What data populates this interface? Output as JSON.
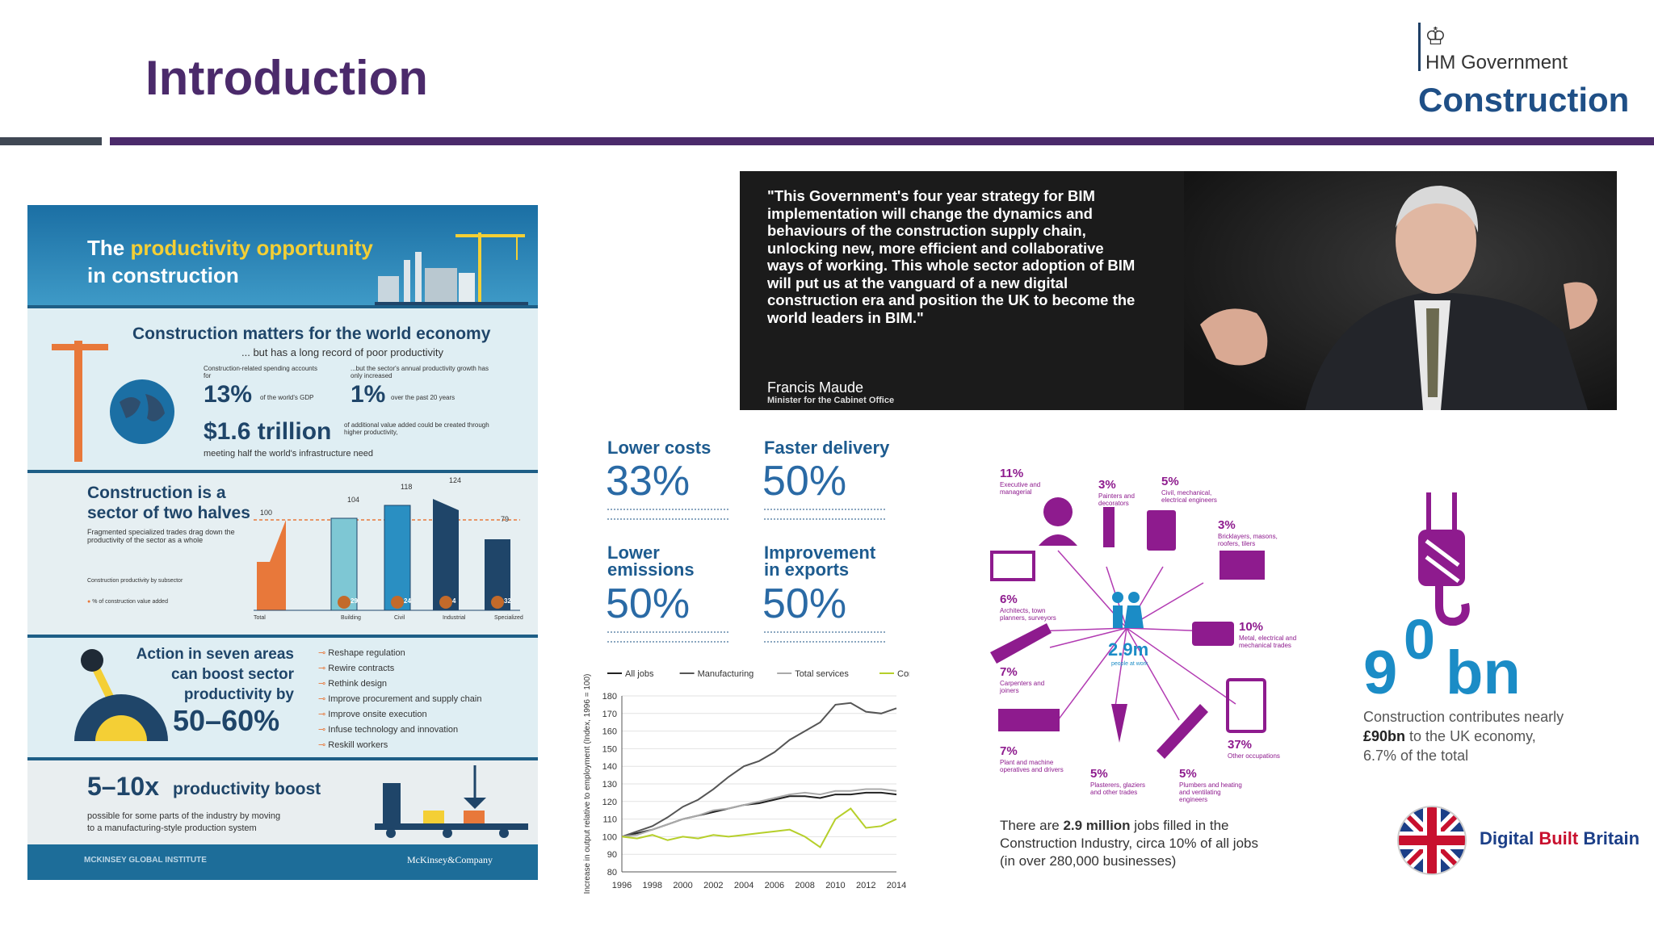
{
  "slide": {
    "title": "Introduction"
  },
  "logo": {
    "crest": "♔",
    "line1": "HM Government",
    "line2": "Construction"
  },
  "infographic": {
    "header_pre": "The ",
    "header_highlight": "productivity opportunity",
    "header_line2": "in construction",
    "s1_title": "Construction matters for the world economy",
    "s1_sub": "... but has a long record of poor productivity",
    "s1_note_a": "Construction-related spending accounts for",
    "s1_note_b": "...but the sector's annual productivity growth has only increased",
    "s1_big_a": "13%",
    "s1_small_a": "of the world's GDP",
    "s1_big_b": "1%",
    "s1_small_b": "over the past 20 years",
    "s1_big_c": "$1.6 trillion",
    "s1_small_c": "of additional value added could be created through higher productivity,",
    "s1_small_d": "meeting half the world's infrastructure need",
    "s2_title_1": "Construction is a",
    "s2_title_2": "sector of two halves",
    "s2_sub": "Fragmented specialized trades drag down the productivity of the sector as a whole",
    "s2_note": "Construction productivity by subsector",
    "s2_legend": "% of construction value added",
    "s2_bars": [
      {
        "label": "Total",
        "value": "100",
        "share": ""
      },
      {
        "label": "Building",
        "value": "104",
        "share": "29"
      },
      {
        "label": "Civil",
        "value": "118",
        "share": "24"
      },
      {
        "label": "Industrial",
        "value": "124",
        "share": "4"
      },
      {
        "label": "Specialized",
        "value": "79",
        "share": "32"
      }
    ],
    "s3_title_1": "Action in seven areas",
    "s3_title_2": "can boost sector",
    "s3_title_3": "productivity by",
    "s3_big": "50–60%",
    "s3_items": [
      "Reshape regulation",
      "Rewire contracts",
      "Rethink design",
      "Improve procurement and supply chain",
      "Improve onsite execution",
      "Infuse technology and innovation",
      "Reskill workers"
    ],
    "s4_big": "5–10x",
    "s4_title": "productivity boost",
    "s4_sub_1": "possible for some parts of the industry by moving",
    "s4_sub_2": "to a manufacturing-style production system",
    "footer_left": "MCKINSEY GLOBAL INSTITUTE",
    "footer_right": "McKinsey&Company"
  },
  "quote": {
    "text": "\"This Government's four year strategy for BIM implementation will change the dynamics and behaviours of the construction supply chain, unlocking new, more efficient and collaborative ways of working. This whole sector adoption of BIM will put us at the vanguard of a new digital construction era and position the UK to become the world leaders in BIM.\"",
    "name": "Francis Maude",
    "role": "Minister for the Cabinet Office"
  },
  "targets": [
    {
      "title_1": "Lower costs",
      "title_2": "",
      "value": "33%"
    },
    {
      "title_1": "Faster delivery",
      "title_2": "",
      "value": "50%"
    },
    {
      "title_1": "Lower",
      "title_2": "emissions",
      "value": "50%"
    },
    {
      "title_1": "Improvement",
      "title_2": "in exports",
      "value": "50%"
    }
  ],
  "chart_data": {
    "type": "line",
    "ylabel": "Increase in output relative to employment (Index, 1996 = 100)",
    "ylim": [
      80,
      180
    ],
    "yticks": [
      80,
      90,
      100,
      110,
      120,
      130,
      140,
      150,
      160,
      170,
      180
    ],
    "xticks": [
      "1996",
      "1998",
      "2000",
      "2002",
      "2004",
      "2006",
      "2008",
      "2010",
      "2012",
      "2014"
    ],
    "x": [
      1996,
      1997,
      1998,
      1999,
      2000,
      2001,
      2002,
      2003,
      2004,
      2005,
      2006,
      2007,
      2008,
      2009,
      2010,
      2011,
      2012,
      2013,
      2014
    ],
    "series": [
      {
        "name": "All jobs",
        "color": "#222222",
        "values": [
          100,
          102,
          104,
          107,
          110,
          112,
          114,
          116,
          118,
          119,
          121,
          123,
          123,
          122,
          124,
          124,
          125,
          125,
          124
        ]
      },
      {
        "name": "Manufacturing",
        "color": "#555555",
        "values": [
          100,
          103,
          106,
          111,
          117,
          121,
          127,
          134,
          140,
          143,
          148,
          155,
          160,
          165,
          175,
          176,
          171,
          170,
          173
        ]
      },
      {
        "name": "Total services",
        "color": "#aaaaaa",
        "values": [
          100,
          101,
          104,
          107,
          110,
          112,
          115,
          116,
          118,
          120,
          122,
          124,
          125,
          124,
          126,
          126,
          127,
          127,
          126
        ]
      },
      {
        "name": "Construction",
        "color": "#b6cf2a",
        "values": [
          100,
          99,
          101,
          98,
          100,
          99,
          101,
          100,
          101,
          102,
          103,
          104,
          100,
          94,
          110,
          116,
          105,
          106,
          110
        ]
      }
    ]
  },
  "jobs": {
    "center": "2.9m",
    "center_sub": "people at work",
    "items": [
      {
        "pct": "11%",
        "label": "Executive and managerial"
      },
      {
        "pct": "3%",
        "label": "Painters and decorators"
      },
      {
        "pct": "5%",
        "label": "Civil, mechanical, electrical engineers"
      },
      {
        "pct": "3%",
        "label": "Bricklayers, masons, roofers, tilers"
      },
      {
        "pct": "6%",
        "label": "Architects, town planners, surveyors"
      },
      {
        "pct": "10%",
        "label": "Metal, electrical and mechanical trades"
      },
      {
        "pct": "7%",
        "label": "Carpenters and joiners"
      },
      {
        "pct": "37%",
        "label": "Other occupations"
      },
      {
        "pct": "7%",
        "label": "Plant and machine operatives and drivers"
      },
      {
        "pct": "5%",
        "label": "Plasterers, glaziers and other trades"
      },
      {
        "pct": "5%",
        "label": "Plumbers and heating and ventilating engineers"
      }
    ],
    "caption_pre": "There are ",
    "caption_bold": "2.9 million",
    "caption_post": " jobs filled in the Construction Industry, circa 10% of all jobs (in over 280,000 businesses)"
  },
  "economy": {
    "big_9": "9",
    "big_0": "0",
    "big_bn": "bn",
    "text_pre": "Construction contributes nearly ",
    "text_bold": "£90bn",
    "text_post": " to the UK economy, 6.7% of the total"
  },
  "dbb": {
    "word1": "Digital ",
    "word2": "Built",
    "word3": " Britain"
  }
}
